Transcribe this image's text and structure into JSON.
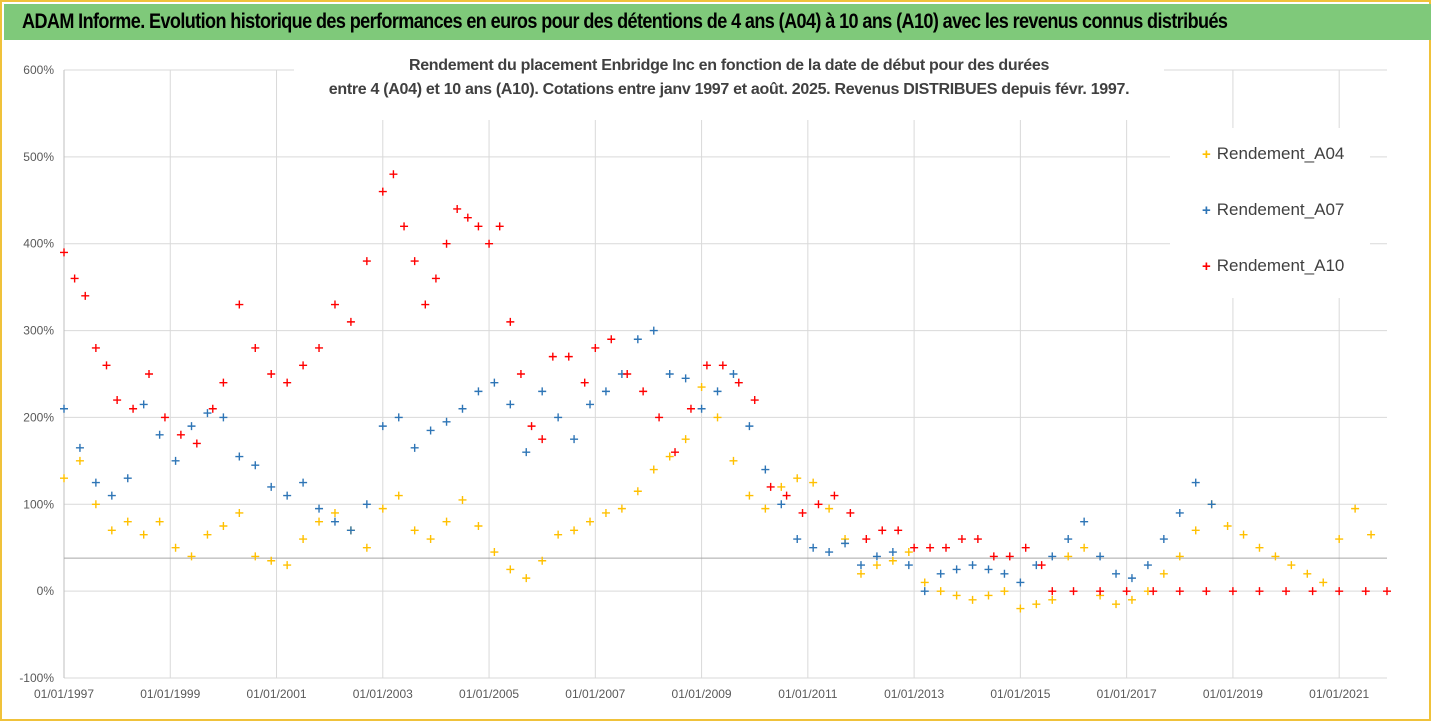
{
  "header": {
    "title": "ADAM Informe. Evolution historique des performances en euros pour des détentions de 4 ans (A04) à 10 ans (A10) avec les revenus connus distribués"
  },
  "colors": {
    "header_bg": "#7fc97a",
    "frame": "#f0c23a"
  },
  "chart_data": {
    "type": "scatter",
    "title_lines": [
      "Rendement du placement Enbridge Inc en fonction de la date de début pour des durées",
      "entre 4 (A04) et 10 ans (A10). Cotations entre janv 1997 et août. 2025. Revenus DISTRIBUES depuis févr. 1997."
    ],
    "xlabel": "",
    "ylabel": "",
    "x_ticks": [
      "01/01/1997",
      "01/01/1999",
      "01/01/2001",
      "01/01/2003",
      "01/01/2005",
      "01/01/2007",
      "01/01/2009",
      "01/01/2011",
      "01/01/2013",
      "01/01/2015",
      "01/01/2017",
      "01/01/2019",
      "01/01/2021"
    ],
    "y_ticks": [
      "-100%",
      "0%",
      "100%",
      "200%",
      "300%",
      "400%",
      "500%",
      "600%"
    ],
    "ylim": [
      -100,
      600
    ],
    "xlim": [
      1997.0,
      2021.9
    ],
    "reference_line_y": 38,
    "legend_position": "right",
    "marker": "+",
    "series": [
      {
        "name": "Rendement_A04",
        "color": "#ffc000",
        "x": [
          1997.0,
          1997.3,
          1997.6,
          1997.9,
          1998.2,
          1998.5,
          1998.8,
          1999.1,
          1999.4,
          1999.7,
          2000.0,
          2000.3,
          2000.6,
          2000.9,
          2001.2,
          2001.5,
          2001.8,
          2002.1,
          2002.4,
          2002.7,
          2003.0,
          2003.3,
          2003.6,
          2003.9,
          2004.2,
          2004.5,
          2004.8,
          2005.1,
          2005.4,
          2005.7,
          2006.0,
          2006.3,
          2006.6,
          2006.9,
          2007.2,
          2007.5,
          2007.8,
          2008.1,
          2008.4,
          2008.7,
          2009.0,
          2009.3,
          2009.6,
          2009.9,
          2010.2,
          2010.5,
          2010.8,
          2011.1,
          2011.4,
          2011.7,
          2012.0,
          2012.3,
          2012.6,
          2012.9,
          2013.2,
          2013.5,
          2013.8,
          2014.1,
          2014.4,
          2014.7,
          2015.0,
          2015.3,
          2015.6,
          2015.9,
          2016.2,
          2016.5,
          2016.8,
          2017.1,
          2017.4,
          2017.7,
          2018.0,
          2018.3,
          2018.6,
          2018.9,
          2019.2,
          2019.5,
          2019.8,
          2020.1,
          2020.4,
          2020.7,
          2021.0,
          2021.3,
          2021.6
        ],
        "values": [
          130,
          150,
          100,
          70,
          80,
          65,
          80,
          50,
          40,
          65,
          75,
          90,
          40,
          35,
          30,
          60,
          80,
          90,
          70,
          50,
          95,
          110,
          70,
          60,
          80,
          105,
          75,
          45,
          25,
          15,
          35,
          65,
          70,
          80,
          90,
          95,
          115,
          140,
          155,
          175,
          235,
          200,
          150,
          110,
          95,
          120,
          130,
          125,
          95,
          60,
          20,
          30,
          35,
          45,
          10,
          0,
          -5,
          -10,
          -5,
          0,
          -20,
          -15,
          -10,
          40,
          50,
          -5,
          -15,
          -10,
          0,
          20,
          40,
          70,
          100,
          75,
          65,
          50,
          40,
          30,
          20,
          10,
          60,
          95,
          65
        ]
      },
      {
        "name": "Rendement_A07",
        "color": "#2e75b6",
        "x": [
          1997.0,
          1997.3,
          1997.6,
          1997.9,
          1998.2,
          1998.5,
          1998.8,
          1999.1,
          1999.4,
          1999.7,
          2000.0,
          2000.3,
          2000.6,
          2000.9,
          2001.2,
          2001.5,
          2001.8,
          2002.1,
          2002.4,
          2002.7,
          2003.0,
          2003.3,
          2003.6,
          2003.9,
          2004.2,
          2004.5,
          2004.8,
          2005.1,
          2005.4,
          2005.7,
          2006.0,
          2006.3,
          2006.6,
          2006.9,
          2007.2,
          2007.5,
          2007.8,
          2008.1,
          2008.4,
          2008.7,
          2009.0,
          2009.3,
          2009.6,
          2009.9,
          2010.2,
          2010.5,
          2010.8,
          2011.1,
          2011.4,
          2011.7,
          2012.0,
          2012.3,
          2012.6,
          2012.9,
          2013.2,
          2013.5,
          2013.8,
          2014.1,
          2014.4,
          2014.7,
          2015.0,
          2015.3,
          2015.6,
          2015.9,
          2016.2,
          2016.5,
          2016.8,
          2017.1,
          2017.4,
          2017.7,
          2018.0,
          2018.3,
          2018.6
        ],
        "values": [
          210,
          165,
          125,
          110,
          130,
          215,
          180,
          150,
          190,
          205,
          200,
          155,
          145,
          120,
          110,
          125,
          95,
          80,
          70,
          100,
          190,
          200,
          165,
          185,
          195,
          210,
          230,
          240,
          215,
          160,
          230,
          200,
          175,
          215,
          230,
          250,
          290,
          300,
          250,
          245,
          210,
          230,
          250,
          190,
          140,
          100,
          60,
          50,
          45,
          55,
          30,
          40,
          45,
          30,
          0,
          20,
          25,
          30,
          25,
          20,
          10,
          30,
          40,
          60,
          80,
          40,
          20,
          15,
          30,
          60,
          90,
          125,
          100
        ]
      },
      {
        "name": "Rendement_A10",
        "color": "#ff0000",
        "x": [
          1997.0,
          1997.2,
          1997.4,
          1997.6,
          1997.8,
          1998.0,
          1998.3,
          1998.6,
          1998.9,
          1999.2,
          1999.5,
          1999.8,
          2000.0,
          2000.3,
          2000.6,
          2000.9,
          2001.2,
          2001.5,
          2001.8,
          2002.1,
          2002.4,
          2002.7,
          2003.0,
          2003.2,
          2003.4,
          2003.6,
          2003.8,
          2004.0,
          2004.2,
          2004.4,
          2004.6,
          2004.8,
          2005.0,
          2005.2,
          2005.4,
          2005.6,
          2005.8,
          2006.0,
          2006.2,
          2006.5,
          2006.8,
          2007.0,
          2007.3,
          2007.6,
          2007.9,
          2008.2,
          2008.5,
          2008.8,
          2009.1,
          2009.4,
          2009.7,
          2010.0,
          2010.3,
          2010.6,
          2010.9,
          2011.2,
          2011.5,
          2011.8,
          2012.1,
          2012.4,
          2012.7,
          2013.0,
          2013.3,
          2013.6,
          2013.9,
          2014.2,
          2014.5,
          2014.8,
          2015.1,
          2015.4,
          2015.6,
          2016.0,
          2016.5,
          2017.0,
          2017.5,
          2018.0,
          2018.5,
          2019.0,
          2019.5,
          2020.0,
          2020.5,
          2021.0,
          2021.5,
          2021.9
        ],
        "values": [
          390,
          360,
          340,
          280,
          260,
          220,
          210,
          250,
          200,
          180,
          170,
          210,
          240,
          330,
          280,
          250,
          240,
          260,
          280,
          330,
          310,
          380,
          460,
          480,
          420,
          380,
          330,
          360,
          400,
          440,
          430,
          420,
          400,
          420,
          310,
          250,
          190,
          175,
          270,
          270,
          240,
          280,
          290,
          250,
          230,
          200,
          160,
          210,
          260,
          260,
          240,
          220,
          120,
          110,
          90,
          100,
          110,
          90,
          60,
          70,
          70,
          50,
          50,
          50,
          60,
          60,
          40,
          40,
          50,
          30,
          0,
          0,
          0,
          0,
          0,
          0,
          0,
          0,
          0,
          0,
          0,
          0,
          0,
          0
        ]
      }
    ]
  }
}
